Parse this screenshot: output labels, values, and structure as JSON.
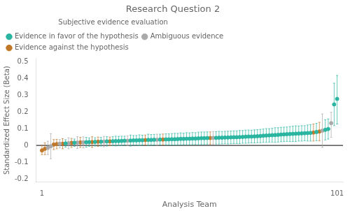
{
  "chart_data": {
    "type": "scatter",
    "title": "Research Question 2",
    "x_label": "Analysis Team",
    "y_label": "Standardized Effect Size (Beta)",
    "xlim": [
      -1,
      103
    ],
    "ylim": [
      -0.22,
      0.52
    ],
    "xticks": [
      1,
      101
    ],
    "yticks": [
      -0.2,
      -0.1,
      0,
      0.1,
      0.2,
      0.3,
      0.4,
      0.5
    ],
    "grid": false,
    "legend": "upper left",
    "legend_title": "Subjective evidence evaluation",
    "marker": "circle",
    "hline": 0,
    "series": [
      {
        "name": "Evidence in favor of the hypothesis",
        "color": "#2ab5a0",
        "x": [
          9,
          12,
          16,
          17,
          19,
          21,
          23,
          25,
          26,
          27,
          28,
          29,
          31,
          32,
          33,
          34,
          35,
          37,
          38,
          39,
          41,
          43,
          44,
          45,
          46,
          47,
          48,
          49,
          50,
          51,
          52,
          53,
          54,
          55,
          56,
          57,
          60,
          61,
          62,
          63,
          64,
          65,
          66,
          67,
          68,
          69,
          70,
          71,
          72,
          73,
          74,
          75,
          76,
          77,
          78,
          79,
          80,
          81,
          82,
          83,
          84,
          85,
          86,
          87,
          88,
          89,
          90,
          91,
          92,
          94,
          97,
          98,
          100,
          101
        ],
        "values": [
          0.012,
          0.016,
          0.019,
          0.02,
          0.021,
          0.022,
          0.024,
          0.025,
          0.026,
          0.026,
          0.027,
          0.028,
          0.029,
          0.03,
          0.03,
          0.031,
          0.031,
          0.033,
          0.033,
          0.034,
          0.035,
          0.036,
          0.036,
          0.037,
          0.037,
          0.038,
          0.039,
          0.039,
          0.04,
          0.04,
          0.041,
          0.041,
          0.042,
          0.043,
          0.043,
          0.044,
          0.045,
          0.046,
          0.046,
          0.047,
          0.047,
          0.048,
          0.049,
          0.049,
          0.05,
          0.051,
          0.052,
          0.053,
          0.053,
          0.054,
          0.055,
          0.056,
          0.058,
          0.059,
          0.06,
          0.061,
          0.062,
          0.063,
          0.065,
          0.066,
          0.067,
          0.068,
          0.069,
          0.07,
          0.071,
          0.072,
          0.073,
          0.074,
          0.075,
          0.08,
          0.093,
          0.098,
          0.245,
          0.278
        ],
        "lo": [
          -0.01,
          -0.006,
          -0.01,
          -0.005,
          -0.004,
          -0.004,
          -0.004,
          -0.002,
          -0.003,
          -0.002,
          -0.001,
          0.001,
          -0.004,
          0.001,
          0.001,
          -0.001,
          0.001,
          -0.001,
          0.001,
          0.002,
          0.003,
          0.003,
          0.003,
          0.003,
          0.002,
          0.004,
          0.003,
          0.005,
          0.004,
          0.005,
          0.005,
          0.006,
          0.005,
          0.006,
          0.006,
          0.007,
          0.008,
          0.008,
          0.009,
          0.01,
          0.009,
          0.01,
          0.011,
          0.011,
          0.011,
          0.013,
          0.013,
          0.014,
          0.015,
          0.015,
          0.016,
          0.016,
          0.018,
          0.018,
          0.02,
          0.02,
          0.018,
          0.02,
          0.022,
          0.023,
          0.024,
          0.023,
          0.023,
          0.023,
          0.026,
          0.026,
          0.028,
          0.026,
          0.026,
          0.028,
          0.033,
          0.038,
          0.118,
          0.128
        ],
        "hi": [
          0.034,
          0.038,
          0.048,
          0.045,
          0.046,
          0.048,
          0.052,
          0.052,
          0.055,
          0.054,
          0.055,
          0.055,
          0.062,
          0.059,
          0.059,
          0.063,
          0.061,
          0.067,
          0.065,
          0.066,
          0.067,
          0.069,
          0.069,
          0.071,
          0.072,
          0.072,
          0.075,
          0.073,
          0.076,
          0.075,
          0.077,
          0.076,
          0.079,
          0.08,
          0.08,
          0.081,
          0.082,
          0.084,
          0.083,
          0.084,
          0.085,
          0.086,
          0.087,
          0.087,
          0.089,
          0.089,
          0.091,
          0.092,
          0.091,
          0.093,
          0.094,
          0.096,
          0.098,
          0.1,
          0.1,
          0.102,
          0.106,
          0.106,
          0.108,
          0.109,
          0.11,
          0.113,
          0.115,
          0.117,
          0.116,
          0.118,
          0.118,
          0.122,
          0.124,
          0.132,
          0.153,
          0.158,
          0.372,
          0.418
        ]
      },
      {
        "name": "Ambiguous evidence",
        "color": "#aaaaaa",
        "x": [
          3,
          4,
          7,
          10,
          13,
          15,
          22,
          30,
          40,
          59,
          96,
          99
        ],
        "values": [
          -0.015,
          -0.005,
          0.01,
          0.013,
          0.017,
          0.018,
          0.023,
          0.028,
          0.034,
          0.045,
          0.088,
          0.133
        ],
        "lo": [
          -0.055,
          -0.08,
          -0.015,
          -0.02,
          -0.018,
          -0.015,
          -0.008,
          -0.001,
          0.001,
          0.007,
          -0.012,
          0.048
        ],
        "hi": [
          0.025,
          0.07,
          0.035,
          0.046,
          0.052,
          0.051,
          0.054,
          0.057,
          0.067,
          0.083,
          0.188,
          0.198
        ]
      },
      {
        "name": "Evidence against the hypothesis",
        "color": "#c07828",
        "x": [
          1,
          2,
          5,
          6,
          8,
          11,
          14,
          18,
          20,
          24,
          36,
          42,
          58,
          93,
          95
        ],
        "values": [
          -0.03,
          -0.02,
          0.005,
          0.008,
          0.01,
          0.015,
          0.018,
          0.02,
          0.022,
          0.024,
          0.032,
          0.035,
          0.044,
          0.077,
          0.083
        ],
        "lo": [
          -0.055,
          -0.055,
          -0.025,
          -0.02,
          -0.02,
          -0.012,
          -0.012,
          -0.012,
          -0.006,
          -0.002,
          0.002,
          0.002,
          0.007,
          0.026,
          0.028
        ],
        "hi": [
          0.0,
          0.015,
          0.035,
          0.036,
          0.04,
          0.042,
          0.048,
          0.052,
          0.05,
          0.05,
          0.062,
          0.068,
          0.081,
          0.128,
          0.138
        ]
      }
    ]
  }
}
